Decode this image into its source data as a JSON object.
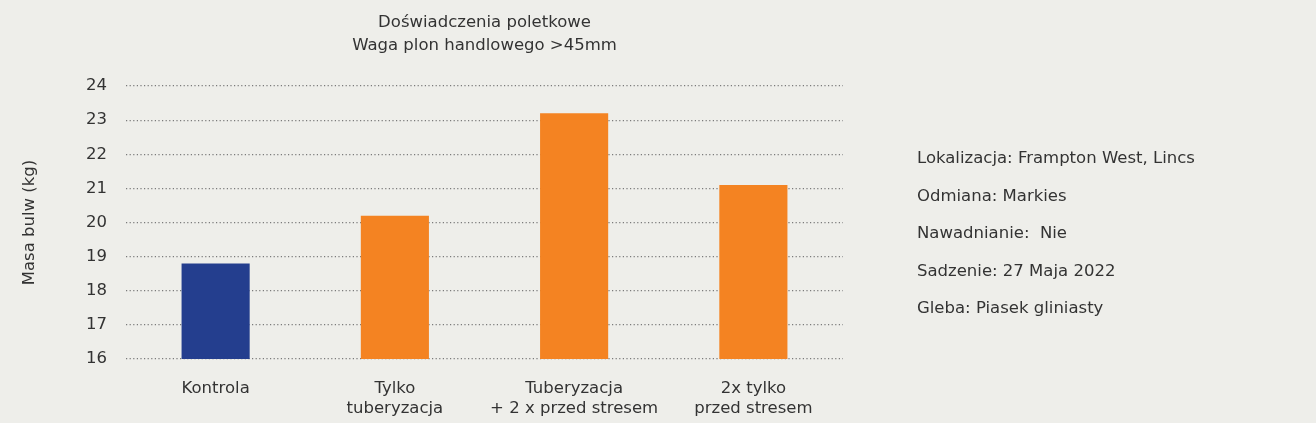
{
  "chart_data": {
    "type": "bar",
    "title": "Doświadczenia poletkowe",
    "subtitle": "Waga plon handlowego >45mm",
    "ylabel": "Masa bulw (kg)",
    "categories": [
      "Kontrola",
      "Tylko\ntuberyzacja",
      "Tuberyzacja\n+ 2 x przed stresem",
      "2x tylko\nprzed stresem"
    ],
    "values": [
      18.8,
      20.2,
      23.2,
      21.1
    ],
    "colors": [
      "#243e8e",
      "#f48322",
      "#f48322",
      "#f48322"
    ],
    "ylim": [
      16,
      24
    ],
    "yticks": [
      16,
      17,
      18,
      19,
      20,
      21,
      22,
      23,
      24
    ],
    "grid": "y",
    "legend": false,
    "annotations": [
      "Lokalizacja: Frampton West, Lincs",
      "Odmiana: Markies",
      "Nawadnianie:  Nie",
      "Sadzenie: 27 Maja 2022",
      "Gleba: Piasek gliniasty"
    ]
  }
}
